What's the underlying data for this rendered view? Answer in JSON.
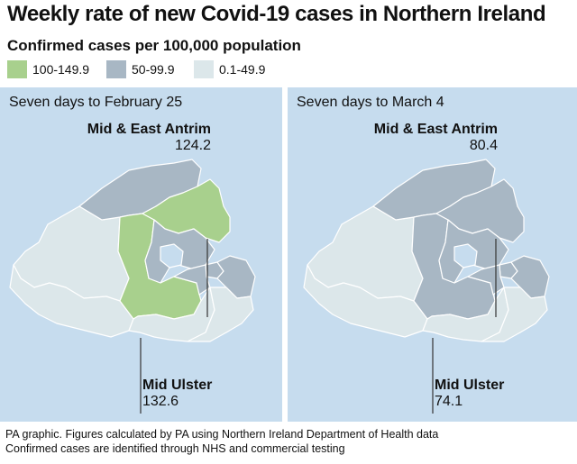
{
  "title": "Weekly rate of new Covid-19 cases in Northern Ireland",
  "subtitle": "Confirmed cases per 100,000 population",
  "legend": [
    {
      "label": "100-149.9",
      "color": "#a8d08d"
    },
    {
      "label": "50-99.9",
      "color": "#a8b7c4"
    },
    {
      "label": "0.1-49.9",
      "color": "#dce7ea"
    }
  ],
  "panels": [
    {
      "title": "Seven days to February 25",
      "mid_east_antrim": {
        "name": "Mid & East Antrim",
        "value": "124.2",
        "band": "100-149.9"
      },
      "mid_ulster": {
        "name": "Mid Ulster",
        "value": "132.6",
        "band": "100-149.9"
      }
    },
    {
      "title": "Seven days to March 4",
      "mid_east_antrim": {
        "name": "Mid & East Antrim",
        "value": "80.4",
        "band": "50-99.9"
      },
      "mid_ulster": {
        "name": "Mid Ulster",
        "value": "74.1",
        "band": "50-99.9"
      }
    }
  ],
  "colors": {
    "sea": "#c6dcee",
    "lough": "#c6dcee",
    "high": "#a8d08d",
    "mid": "#a8b7c4",
    "low": "#dce7ea",
    "border": "#ffffff",
    "leader": "#333333"
  },
  "footer": {
    "line1": "PA graphic. Figures calculated by PA using Northern Ireland Department of Health data",
    "line2": "Confirmed cases are identified through NHS and commercial testing"
  }
}
